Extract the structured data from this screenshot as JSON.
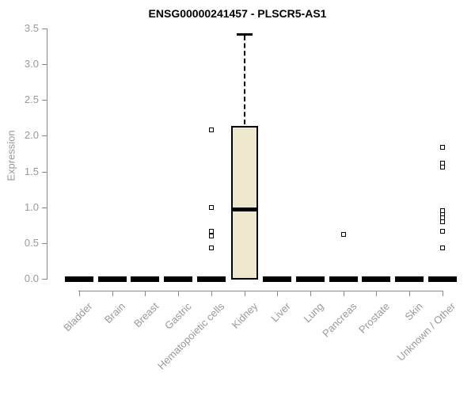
{
  "title": "ENSG00000241457 - PLSCR5-AS1",
  "chart_data": {
    "type": "boxplot",
    "title": "ENSG00000241457 - PLSCR5-AS1",
    "xlabel": "",
    "ylabel": "Expression",
    "ylim": [
      0,
      3.5
    ],
    "ytick_labels": [
      "0.0",
      "0.5",
      "1.0",
      "1.5",
      "2.0",
      "2.5",
      "3.0",
      "3.5"
    ],
    "grid": false,
    "legend": false,
    "categories": [
      "Bladder",
      "Brain",
      "Breast",
      "Gastric",
      "Hematopoietic cells",
      "Kidney",
      "Liver",
      "Lung",
      "Pancreas",
      "Prostate",
      "Skin",
      "Unknown / Other"
    ],
    "boxes": [
      {
        "category": "Bladder",
        "q1": 0,
        "median": 0,
        "q3": 0,
        "whisker_low": 0,
        "whisker_high": 0,
        "outliers": []
      },
      {
        "category": "Brain",
        "q1": 0,
        "median": 0,
        "q3": 0,
        "whisker_low": 0,
        "whisker_high": 0,
        "outliers": []
      },
      {
        "category": "Breast",
        "q1": 0,
        "median": 0,
        "q3": 0,
        "whisker_low": 0,
        "whisker_high": 0,
        "outliers": []
      },
      {
        "category": "Gastric",
        "q1": 0,
        "median": 0,
        "q3": 0,
        "whisker_low": 0,
        "whisker_high": 0,
        "outliers": []
      },
      {
        "category": "Hematopoietic cells",
        "q1": 0,
        "median": 0,
        "q3": 0,
        "whisker_low": 0,
        "whisker_high": 0,
        "outliers": [
          2.08,
          1.0,
          0.66,
          0.6,
          0.43
        ]
      },
      {
        "category": "Kidney",
        "q1": 0.01,
        "median": 0.97,
        "q3": 2.14,
        "whisker_low": 0.01,
        "whisker_high": 3.42,
        "outliers": []
      },
      {
        "category": "Liver",
        "q1": 0,
        "median": 0,
        "q3": 0,
        "whisker_low": 0,
        "whisker_high": 0,
        "outliers": []
      },
      {
        "category": "Lung",
        "q1": 0,
        "median": 0,
        "q3": 0,
        "whisker_low": 0,
        "whisker_high": 0,
        "outliers": []
      },
      {
        "category": "Pancreas",
        "q1": 0,
        "median": 0,
        "q3": 0,
        "whisker_low": 0,
        "whisker_high": 0,
        "outliers": [
          0.62
        ]
      },
      {
        "category": "Prostate",
        "q1": 0,
        "median": 0,
        "q3": 0,
        "whisker_low": 0,
        "whisker_high": 0,
        "outliers": []
      },
      {
        "category": "Skin",
        "q1": 0,
        "median": 0,
        "q3": 0,
        "whisker_low": 0,
        "whisker_high": 0,
        "outliers": []
      },
      {
        "category": "Unknown / Other",
        "q1": 0,
        "median": 0,
        "q3": 0,
        "whisker_low": 0,
        "whisker_high": 0,
        "outliers": [
          1.84,
          1.62,
          1.56,
          0.95,
          0.9,
          0.85,
          0.8,
          0.66,
          0.43
        ]
      }
    ],
    "colors": {
      "box_fill": "#ECE7CD",
      "box_border": "#000000",
      "flat_box": "#000000",
      "outlier": "#000000",
      "axis": "#898989",
      "tick_label": "#999999",
      "title": "#000000",
      "background": "#FFFFFF"
    }
  }
}
